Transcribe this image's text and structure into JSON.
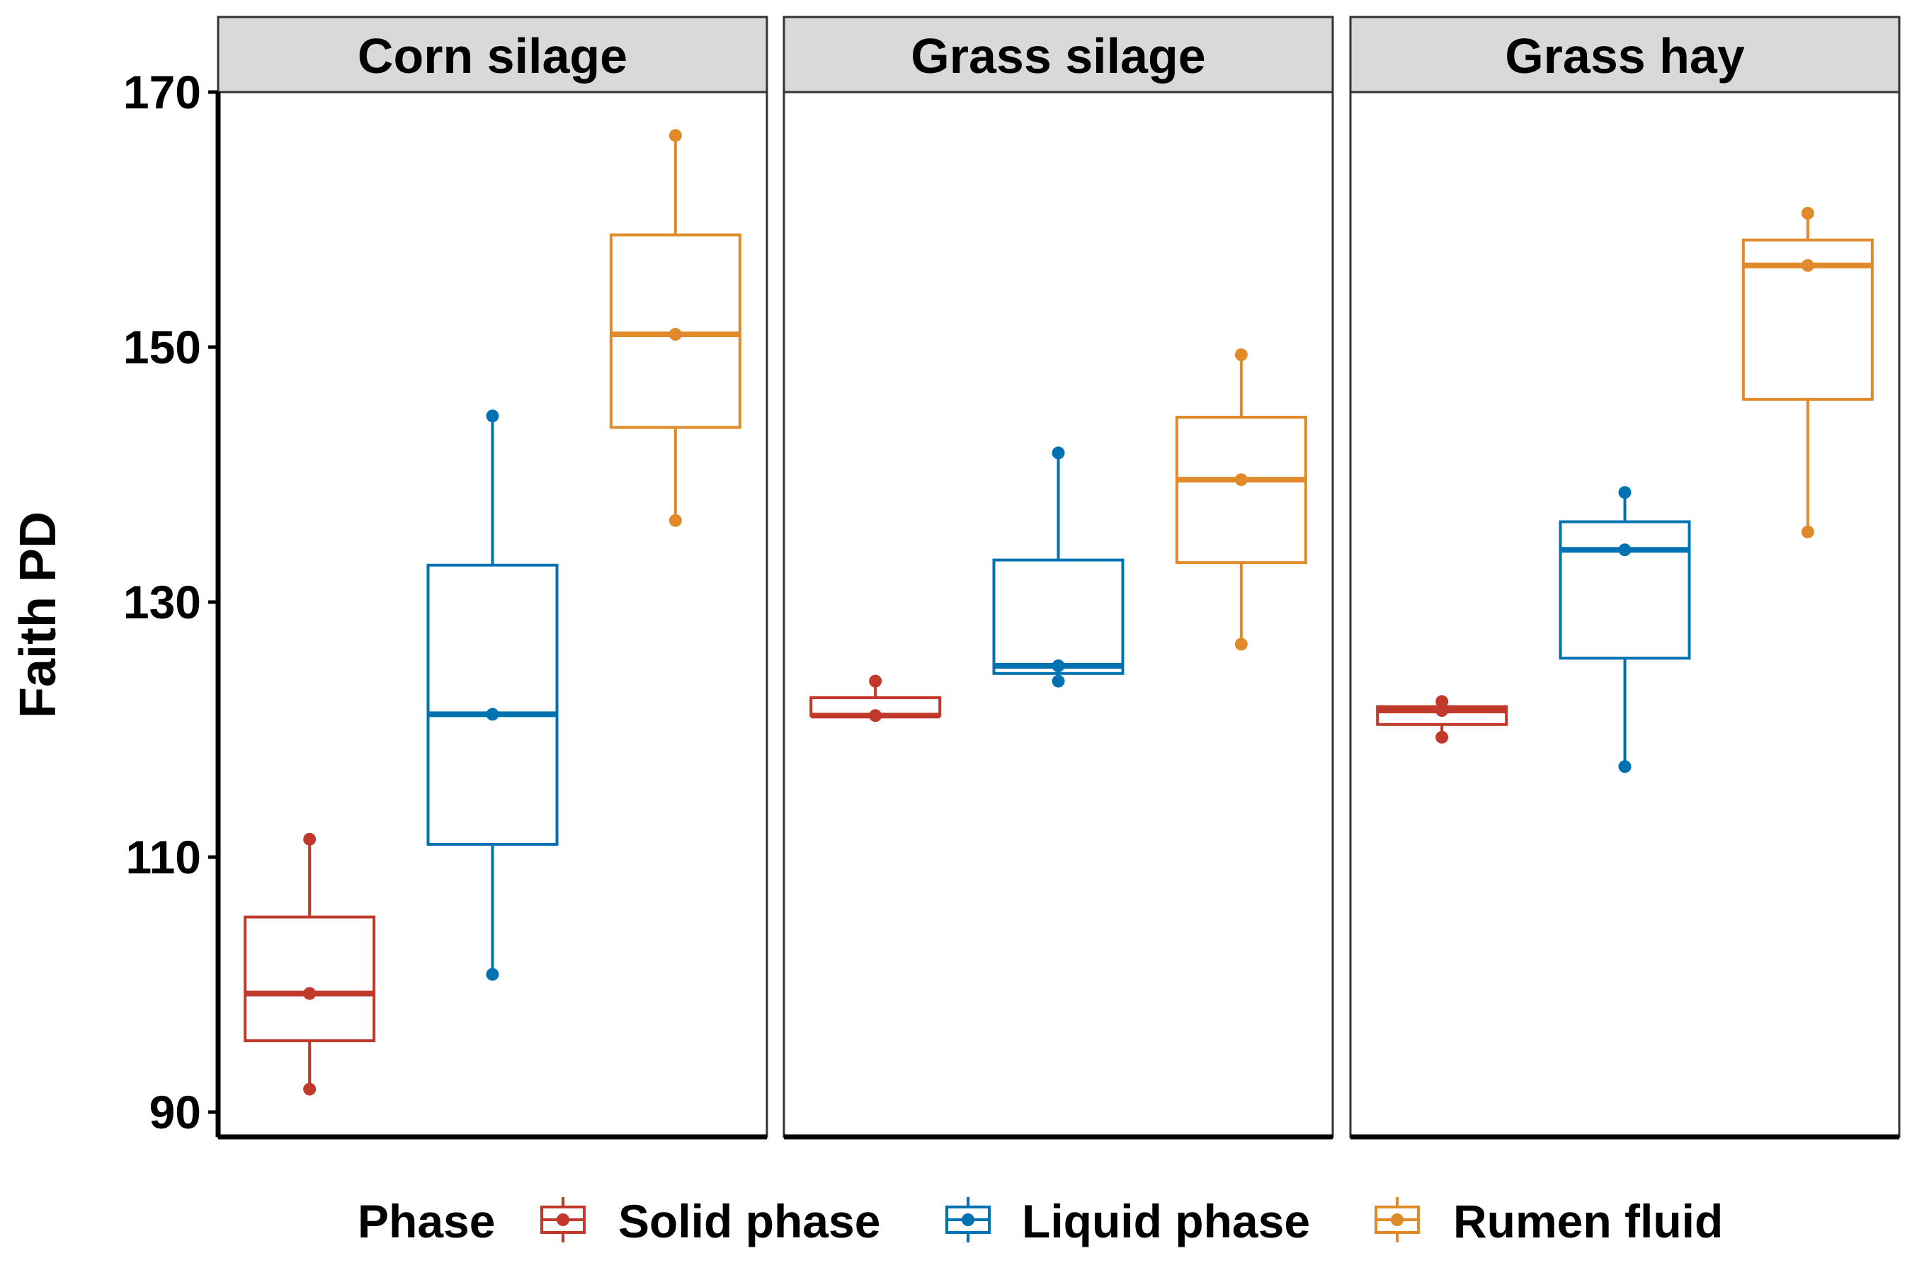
{
  "chart_data": {
    "type": "boxplot",
    "ylabel": "Faith PD",
    "yticks": [
      90,
      110,
      130,
      150,
      170
    ],
    "ylim": [
      88,
      176
    ],
    "grid": false,
    "legend": {
      "title": "Phase",
      "placement": "bottom",
      "entries": [
        "Solid phase",
        "Liquid phase",
        "Rumen fluid"
      ]
    },
    "colors": {
      "Solid phase": "#c0392b",
      "Liquid phase": "#0072b2",
      "Rumen fluid": "#e08a2a"
    },
    "panels": [
      {
        "title": "Corn silage",
        "boxes": [
          {
            "name": "Solid phase",
            "whisker_low": 91.8,
            "q1": 95.6,
            "median": 99.3,
            "q3": 105.3,
            "whisker_high": 111.4,
            "points": [
              91.8,
              99.3,
              111.4
            ]
          },
          {
            "name": "Liquid phase",
            "whisker_low": 100.8,
            "q1": 111.0,
            "median": 121.2,
            "q3": 132.9,
            "whisker_high": 144.6,
            "points": [
              100.8,
              121.2,
              144.6
            ]
          },
          {
            "name": "Rumen fluid",
            "whisker_low": 136.4,
            "q1": 143.7,
            "median": 151.0,
            "q3": 158.8,
            "whisker_high": 166.6,
            "points": [
              136.4,
              151.0,
              166.6
            ]
          }
        ]
      },
      {
        "title": "Grass silage",
        "boxes": [
          {
            "name": "Solid phase",
            "whisker_low": 121.1,
            "q1": 121.1,
            "median": 121.1,
            "q3": 122.5,
            "whisker_high": 123.8,
            "points": [
              121.1,
              123.8
            ]
          },
          {
            "name": "Liquid phase",
            "whisker_low": 123.8,
            "q1": 124.4,
            "median": 125.0,
            "q3": 133.3,
            "whisker_high": 141.7,
            "points": [
              123.8,
              125.0,
              141.7
            ]
          },
          {
            "name": "Rumen fluid",
            "whisker_low": 126.7,
            "q1": 133.1,
            "median": 139.6,
            "q3": 144.5,
            "whisker_high": 149.4,
            "points": [
              126.7,
              139.6,
              149.4
            ]
          }
        ]
      },
      {
        "title": "Grass hay",
        "boxes": [
          {
            "name": "Solid phase",
            "whisker_low": 119.4,
            "q1": 120.4,
            "median": 121.5,
            "q3": 121.8,
            "whisker_high": 122.2,
            "points": [
              119.4,
              121.5,
              122.2
            ]
          },
          {
            "name": "Liquid phase",
            "whisker_low": 117.1,
            "q1": 125.6,
            "median": 134.1,
            "q3": 136.3,
            "whisker_high": 138.6,
            "points": [
              117.1,
              134.1,
              138.6
            ]
          },
          {
            "name": "Rumen fluid",
            "whisker_low": 135.5,
            "q1": 145.9,
            "median": 156.4,
            "q3": 158.4,
            "whisker_high": 160.5,
            "points": [
              135.5,
              156.4,
              160.5
            ]
          }
        ]
      }
    ]
  }
}
